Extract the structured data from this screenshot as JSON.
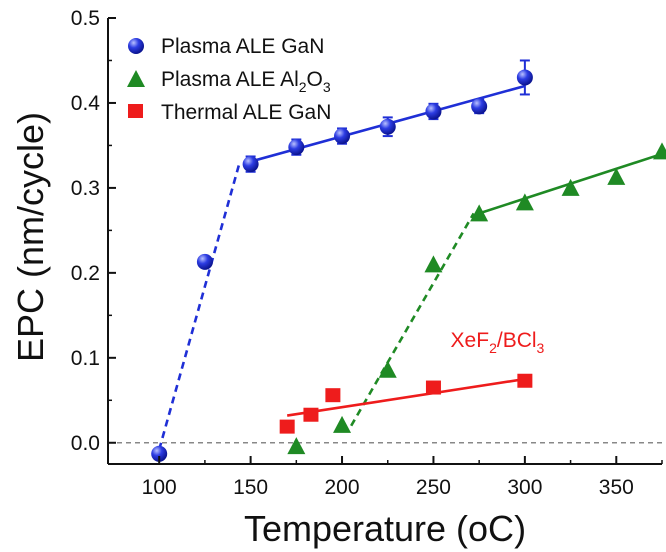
{
  "chart_data": {
    "type": "scatter",
    "xlabel": "Temperature (",
    "xlabel_unit": "oC",
    "xlabel_end": ")",
    "ylabel": "EPC (nm/cycle)",
    "xlim": [
      72,
      375
    ],
    "ylim": [
      -0.025,
      0.5
    ],
    "x_ticks": [
      100,
      150,
      200,
      250,
      300,
      350
    ],
    "y_ticks": [
      0.0,
      0.1,
      0.2,
      0.3,
      0.4,
      0.5
    ],
    "x_tick_labels": [
      "100",
      "150",
      "200",
      "250",
      "300",
      "350"
    ],
    "y_tick_labels": [
      "0.0",
      "0.1",
      "0.2",
      "0.3",
      "0.4",
      "0.5"
    ],
    "legend_position": "top-left",
    "reference_line": {
      "y": 0.0,
      "style": "dashed",
      "color": "#888888"
    },
    "series": [
      {
        "name": "Plasma ALE GaN",
        "marker": "sphere",
        "color": "#1f2fd6",
        "x": [
          100,
          125,
          150,
          175,
          200,
          225,
          250,
          275,
          300
        ],
        "y": [
          -0.013,
          0.213,
          0.328,
          0.348,
          0.361,
          0.372,
          0.39,
          0.396,
          0.43
        ],
        "yerr": [
          0,
          0,
          0.009,
          0.009,
          0.009,
          0.011,
          0.009,
          0.008,
          0.02
        ],
        "fits": [
          {
            "x": [
              100,
              144
            ],
            "y": [
              -0.008,
              0.33
            ],
            "style": "dashed"
          },
          {
            "x": [
              150,
              300
            ],
            "y": [
              0.331,
              0.42
            ],
            "style": "solid"
          }
        ]
      },
      {
        "name_parts": [
          "Plasma ALE Al",
          "2",
          "O",
          "3"
        ],
        "marker": "triangle",
        "color": "#1f8a24",
        "x": [
          175,
          200,
          225,
          250,
          275,
          300,
          325,
          350,
          375
        ],
        "y": [
          -0.004,
          0.021,
          0.086,
          0.21,
          0.27,
          0.283,
          0.3,
          0.313,
          0.343
        ],
        "fits": [
          {
            "x": [
              205,
              272
            ],
            "y": [
              0.02,
              0.27
            ],
            "style": "dashed"
          },
          {
            "x": [
              275,
              375
            ],
            "y": [
              0.27,
              0.34
            ],
            "style": "solid"
          }
        ]
      },
      {
        "name": "Thermal ALE GaN",
        "marker": "square",
        "color": "#ee1c1c",
        "x": [
          170,
          183,
          195,
          250,
          300
        ],
        "y": [
          0.019,
          0.033,
          0.056,
          0.065,
          0.073
        ],
        "fits": [
          {
            "x": [
              170,
              300
            ],
            "y": [
              0.032,
              0.075
            ],
            "style": "solid"
          }
        ]
      }
    ],
    "annotation": {
      "parts": [
        "XeF",
        "2",
        "/BCl",
        "3"
      ],
      "color": "#ee1c1c",
      "x": 285,
      "y": 0.113
    }
  }
}
